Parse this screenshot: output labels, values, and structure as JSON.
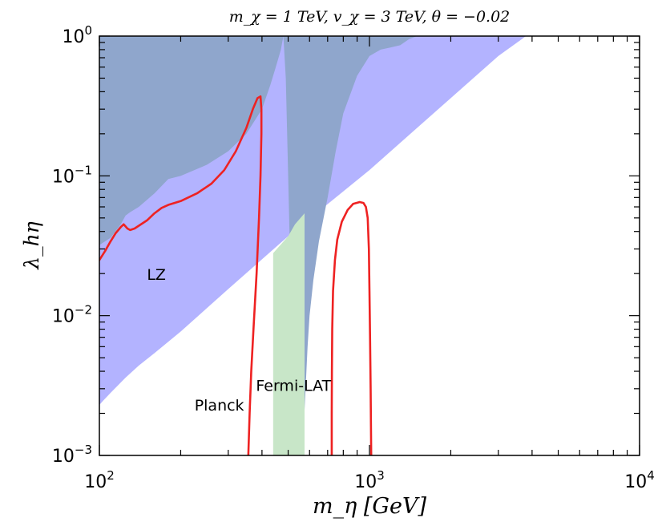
{
  "chart_data": {
    "type": "area",
    "title": "m_χ = 1 TeV, v_χ = 3 TeV, θ = −0.02",
    "xlabel": "m_η [GeV]",
    "ylabel": "λ_hη",
    "x_scale": "log",
    "y_scale": "log",
    "xlim": [
      100,
      10000
    ],
    "ylim": [
      0.001,
      1
    ],
    "x_ticks": [
      {
        "value": 100,
        "base": "10",
        "exp": "2"
      },
      {
        "value": 1000,
        "base": "10",
        "exp": "3"
      },
      {
        "value": 10000,
        "base": "10",
        "exp": "4"
      }
    ],
    "y_ticks": [
      {
        "value": 0.001,
        "base": "10",
        "exp": "−3"
      },
      {
        "value": 0.01,
        "base": "10",
        "exp": "−2"
      },
      {
        "value": 0.1,
        "base": "10",
        "exp": "−1"
      },
      {
        "value": 1,
        "base": "10",
        "exp": "0"
      }
    ],
    "grid": false,
    "regions": [
      {
        "label": "LZ",
        "color": "#b3b3ff",
        "description": "excluded wedge",
        "label_pos": {
          "x": 150,
          "y": 0.018
        },
        "polygon": [
          [
            100,
            1
          ],
          [
            100,
            0.0023
          ],
          [
            104,
            0.0025
          ],
          [
            110,
            0.0028
          ],
          [
            125,
            0.0036
          ],
          [
            140,
            0.0044
          ],
          [
            160,
            0.0054
          ],
          [
            200,
            0.0077
          ],
          [
            300,
            0.0155
          ],
          [
            500,
            0.037
          ],
          [
            1000,
            0.11
          ],
          [
            2000,
            0.36
          ],
          [
            3000,
            0.72
          ],
          [
            3800,
            1
          ]
        ]
      },
      {
        "label": "Planck",
        "color": "#8fa6cc",
        "description": "overabundant region",
        "label_pos": {
          "x": 225,
          "y": 0.0021
        },
        "polygon": [
          [
            100,
            1
          ],
          [
            100,
            0.032
          ],
          [
            110,
            0.036
          ],
          [
            120,
            0.045
          ],
          [
            125,
            0.052
          ],
          [
            130,
            0.055
          ],
          [
            140,
            0.06
          ],
          [
            160,
            0.075
          ],
          [
            180,
            0.095
          ],
          [
            200,
            0.1
          ],
          [
            250,
            0.12
          ],
          [
            300,
            0.15
          ],
          [
            350,
            0.2
          ],
          [
            400,
            0.3
          ],
          [
            430,
            0.45
          ],
          [
            450,
            0.6
          ],
          [
            470,
            0.8
          ],
          [
            480,
            1
          ],
          [
            490,
            0.5
          ],
          [
            500,
            0.1
          ],
          [
            510,
            0.02
          ],
          [
            530,
            0.0032
          ],
          [
            550,
            0.0012
          ],
          [
            560,
            0.001
          ],
          [
            565,
            0.001
          ],
          [
            570,
            0.0015
          ],
          [
            580,
            0.003
          ],
          [
            590,
            0.006
          ],
          [
            600,
            0.01
          ],
          [
            620,
            0.018
          ],
          [
            650,
            0.034
          ],
          [
            700,
            0.07
          ],
          [
            750,
            0.15
          ],
          [
            800,
            0.28
          ],
          [
            900,
            0.52
          ],
          [
            1000,
            0.72
          ],
          [
            1100,
            0.8
          ],
          [
            1200,
            0.83
          ],
          [
            1300,
            0.86
          ],
          [
            1400,
            0.95
          ],
          [
            1500,
            1
          ]
        ]
      },
      {
        "label": "Fermi-LAT",
        "color": "#c8e6c8",
        "description": "vertical band",
        "label_pos": {
          "x": 380,
          "y": 0.0029
        },
        "polygon": [
          [
            440,
            0.001
          ],
          [
            440,
            0.028
          ],
          [
            500,
            0.037
          ],
          [
            530,
            0.045
          ],
          [
            575,
            0.054
          ],
          [
            575,
            0.001
          ]
        ]
      }
    ],
    "series": [
      {
        "color": "#ee2222",
        "points": [
          [
            100,
            0.025
          ],
          [
            105,
            0.029
          ],
          [
            110,
            0.034
          ],
          [
            115,
            0.039
          ],
          [
            120,
            0.043
          ],
          [
            123,
            0.045
          ],
          [
            127,
            0.042
          ],
          [
            130,
            0.041
          ],
          [
            135,
            0.042
          ],
          [
            140,
            0.044
          ],
          [
            150,
            0.048
          ],
          [
            160,
            0.054
          ],
          [
            170,
            0.059
          ],
          [
            180,
            0.062
          ],
          [
            200,
            0.066
          ],
          [
            230,
            0.075
          ],
          [
            260,
            0.088
          ],
          [
            290,
            0.11
          ],
          [
            320,
            0.15
          ],
          [
            350,
            0.22
          ],
          [
            370,
            0.3
          ],
          [
            385,
            0.36
          ],
          [
            395,
            0.37
          ],
          [
            398,
            0.3
          ],
          [
            398,
            0.2
          ],
          [
            395,
            0.1
          ],
          [
            390,
            0.05
          ],
          [
            382,
            0.02
          ],
          [
            372,
            0.008
          ],
          [
            365,
            0.004
          ],
          [
            360,
            0.002
          ],
          [
            356,
            0.001
          ]
        ]
      },
      {
        "color": "#ee2222",
        "points": [
          [
            725,
            0.001
          ],
          [
            725,
            0.002
          ],
          [
            726,
            0.004
          ],
          [
            728,
            0.008
          ],
          [
            733,
            0.015
          ],
          [
            745,
            0.025
          ],
          [
            760,
            0.035
          ],
          [
            790,
            0.047
          ],
          [
            830,
            0.057
          ],
          [
            870,
            0.063
          ],
          [
            920,
            0.065
          ],
          [
            950,
            0.064
          ],
          [
            970,
            0.06
          ],
          [
            985,
            0.05
          ],
          [
            995,
            0.03
          ],
          [
            1000,
            0.015
          ],
          [
            1005,
            0.007
          ],
          [
            1010,
            0.003
          ],
          [
            1015,
            0.001
          ]
        ]
      }
    ]
  }
}
